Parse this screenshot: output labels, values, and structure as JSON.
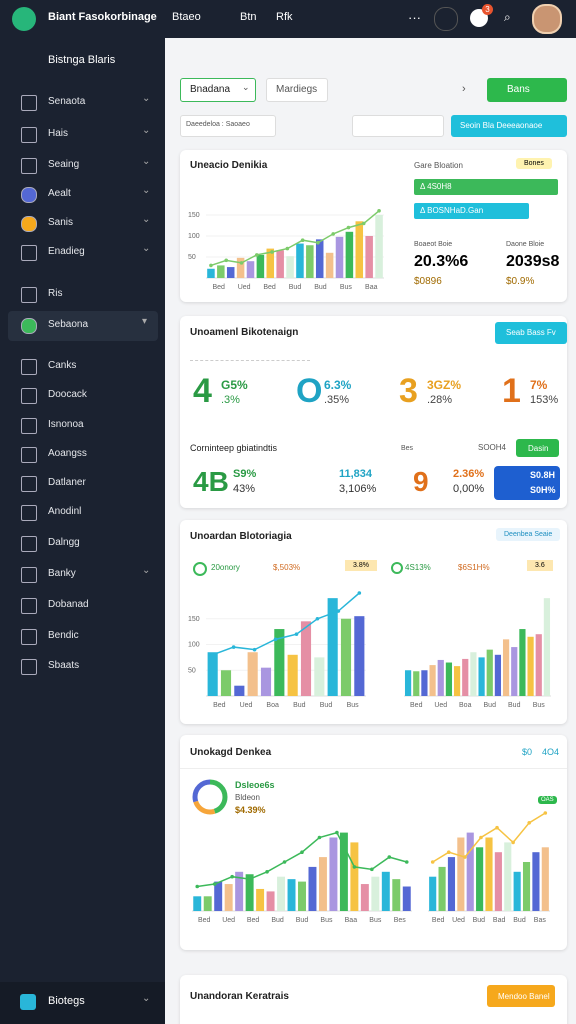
{
  "topbar": {
    "title": "Biant Fasokorbinage",
    "nav": [
      "Btaeo",
      "Btn",
      "Rfk"
    ],
    "badge": "3"
  },
  "sidebar": {
    "header": "Bistnga Blaris",
    "items": [
      "Senaota",
      "Hais",
      "Seaing",
      "Aealt",
      "Sanis",
      "Enadieg",
      "Ris",
      "Sebaona",
      "Canks",
      "Doocack",
      "Isnonoa",
      "Aoangss",
      "Datlaner",
      "Anodinl",
      "Dalngg",
      "Banky",
      "Dobanad",
      "Bendic",
      "Sbaats"
    ],
    "footer": "Biotegs"
  },
  "toolbar": {
    "select": "Bnadana",
    "tab": "Mardiegs",
    "button": "Bans",
    "filter": "Daeedeloa : Saoaeo",
    "action": "Seoin Bla Deeeaonaoe"
  },
  "palette": [
    "#29b6d9",
    "#7ccb6a",
    "#5468d4",
    "#f3c08c",
    "#a996e0",
    "#3cb95a",
    "#f6c343",
    "#e58fa5",
    "#d8f0dc"
  ],
  "card1": {
    "title": "Uneacio Denikia",
    "side_label": "Gare Bloation",
    "chip": "Bones",
    "bar1": "Δ 4S0H8",
    "bar2": "Δ BOSNHaD.Gan",
    "stats": [
      {
        "label": "Boaeot Boie",
        "value": "20.3%6",
        "sub": "$0896"
      },
      {
        "label": "Daone Bloie",
        "value": "2039s8",
        "sub": "$0.9%"
      }
    ],
    "chart": {
      "ylim": [
        0,
        200
      ],
      "yticks": [
        50,
        100,
        150
      ],
      "values": [
        22,
        30,
        26,
        48,
        40,
        55,
        70,
        66,
        52,
        82,
        78,
        92,
        60,
        98,
        110,
        135,
        100,
        150
      ],
      "line": [
        30,
        42,
        36,
        55,
        62,
        70,
        90,
        84,
        105,
        120,
        130,
        160
      ],
      "line_color": "#7ccb6a",
      "xlabels": [
        "Bed",
        "Ued",
        "Bed",
        "Bud",
        "Bud",
        "Bus",
        "Baa"
      ]
    }
  },
  "card2": {
    "title": "Unoamenl Bikotenaign",
    "button": "Seab Bass Fv",
    "kpis": [
      {
        "big": "4",
        "a": "G5%",
        "b": ".3%"
      },
      {
        "big": "O",
        "a": "6.3%",
        "b": ".35%"
      },
      {
        "big": "3",
        "a": "3GZ%",
        "b": ".28%"
      },
      {
        "big": "1",
        "a": "7%",
        "b": "153%"
      }
    ],
    "row_label": "Corninteep gbiatindtis",
    "row_mid": "Bes",
    "row_right": "SOOH4",
    "row_button": "Dasin",
    "kpis2": [
      {
        "big": "4B",
        "a": "S9%",
        "b": "43%"
      },
      {
        "big": "",
        "a": "11,834",
        "b": "3,106%"
      },
      {
        "big": "9",
        "a": "2.36%",
        "b": "0,00%"
      }
    ],
    "box": [
      "S0.8H",
      "S0H%"
    ]
  },
  "card3": {
    "title": "Unoardan Blotoriagia",
    "button": "Deenbea Seaie",
    "left": [
      "20onory",
      "$,503%",
      "3.8%"
    ],
    "right": [
      "4S13%",
      "$6S1H%",
      "3.6"
    ],
    "chart_a": {
      "ylim": [
        0,
        200
      ],
      "yticks": [
        50,
        100,
        150
      ],
      "values": [
        85,
        50,
        20,
        85,
        55,
        130,
        80,
        145,
        75,
        190,
        150,
        155
      ],
      "line": [
        80,
        95,
        90,
        110,
        120,
        150,
        165,
        200
      ],
      "line_color": "#29b6d9",
      "xlabels": [
        "Bed",
        "Ued",
        "Boa",
        "Bud",
        "Bud",
        "Bus"
      ]
    },
    "chart_b": {
      "ylim": [
        0,
        200
      ],
      "values": [
        50,
        48,
        50,
        60,
        70,
        65,
        58,
        72,
        85,
        75,
        90,
        80,
        110,
        95,
        130,
        115,
        120,
        190
      ],
      "xlabels": [
        "Bed",
        "Ued",
        "Boa",
        "Bud",
        "Bud",
        "Bus"
      ]
    }
  },
  "card4": {
    "title": "Unokagd Denkea",
    "corner": "$0",
    "corner2": "4O4",
    "donut_title": "Dsleoe6s",
    "donut_sub": "Bldeon",
    "donut_value": "$4.39%",
    "pill": "OAS",
    "donut": {
      "values": [
        45,
        25,
        30
      ],
      "colors": [
        "#3cb95a",
        "#f6a53a",
        "#5468d4"
      ]
    },
    "chart_a": {
      "ylim": [
        0,
        200
      ],
      "values": [
        30,
        30,
        60,
        55,
        80,
        75,
        45,
        40,
        70,
        65,
        60,
        90,
        110,
        150,
        160,
        140,
        55,
        70,
        80,
        65,
        50
      ],
      "line": [
        50,
        55,
        70,
        65,
        80,
        100,
        120,
        150,
        160,
        90,
        85,
        110,
        100
      ],
      "line_color": "#3cb95a",
      "xlabels": [
        "Bed",
        "Ued",
        "Bed",
        "Bud",
        "Bud",
        "Bus",
        "Baa",
        "Bus",
        "Bes"
      ]
    },
    "chart_b": {
      "ylim": [
        0,
        200
      ],
      "values": [
        70,
        90,
        110,
        150,
        160,
        130,
        150,
        120,
        140,
        80,
        100,
        120,
        130
      ],
      "line": [
        100,
        120,
        110,
        150,
        170,
        140,
        180,
        200
      ],
      "line_color": "#f6c343",
      "xlabels": [
        "Bed",
        "Ued",
        "Bud",
        "Bad",
        "Bud",
        "Bas"
      ]
    }
  },
  "card5": {
    "title": "Unandoran Keratrais",
    "button": "Mendoo Banel"
  }
}
